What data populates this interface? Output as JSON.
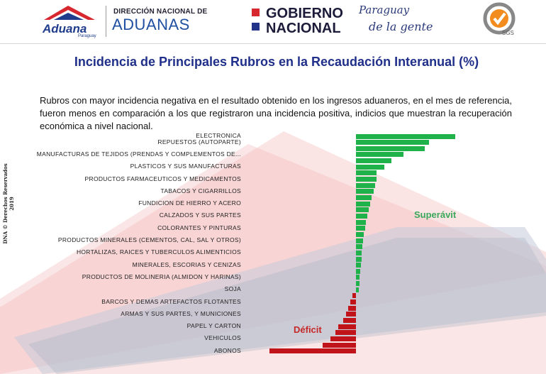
{
  "header": {
    "aduana_logo_word": "Aduana",
    "aduana_logo_sub": "Paraguay",
    "dna_small": "DIRECCIÓN NACIONAL DE",
    "dna_big": "ADUANAS",
    "gov_line1": "GOBIERNO",
    "gov_line2": "NACIONAL",
    "slogan_line1": "Paraguay",
    "slogan_line2": "de la gente",
    "sgs_label": "SGS"
  },
  "side_note": "DNA © Derechos Reservados 2019",
  "title": "Incidencia de Principales Rubros en la Recaudación Interanual (%)",
  "description": "Rubros con mayor incidencia negativa en el resultado obtenido en los ingresos aduaneros, en el mes de referencia, fueron menos en comparación a los que registraron una incidencia positiva, indicios que muestran la recuperación económica a nivel nacional.",
  "annotations": {
    "superavit": "Superávit",
    "deficit": "Déficit"
  },
  "colors": {
    "positive": "#1fb14a",
    "negative": "#c0131a",
    "title": "#1f2f8a"
  },
  "chart_data": {
    "type": "bar",
    "orientation": "horizontal",
    "title": "Incidencia de Principales Rubros en la Recaudación Interanual (%)",
    "categories": [
      "ELECTRONICA",
      "REPUESTOS (AUTOPARTE)",
      "",
      "MANUFACTURAS DE TEJIDOS (PRENDAS Y COMPLEMENTOS DE...",
      "",
      "PLASTICOS Y SUS MANUFACTURAS",
      "",
      "PRODUCTOS FARMACEUTICOS Y MEDICAMENTOS",
      "",
      "TABACOS Y CIGARRILLOS",
      "",
      "FUNDICION DE HIERRO Y ACERO",
      "",
      "CALZADOS Y SUS PARTES",
      "",
      "COLORANTES Y PINTURAS",
      "",
      "PRODUCTOS MINERALES (CEMENTOS, CAL, SAL Y OTROS)",
      "",
      "HORTALIZAS, RAICES Y TUBERCULOS ALIMENTICIOS",
      "",
      "MINERALES, ESCORIAS Y CENIZAS",
      "",
      "PRODUCTOS DE MOLINERIA (ALMIDON Y HARINAS)",
      "",
      "SOJA",
      "",
      "BARCOS Y DEMAS ARTEFACTOS FLOTANTES",
      "",
      "ARMAS Y SUS PARTES, Y MUNICIONES",
      "",
      "PAPEL Y CARTON",
      "",
      "VEHICULOS",
      "",
      "ABONOS"
    ],
    "values": [
      7.8,
      5.7,
      5.4,
      3.7,
      2.8,
      2.2,
      1.6,
      1.6,
      1.5,
      1.4,
      1.2,
      1.1,
      1.0,
      0.9,
      0.8,
      0.7,
      0.6,
      0.55,
      0.5,
      0.45,
      0.45,
      0.4,
      0.35,
      0.3,
      0.25,
      0.2,
      -0.3,
      -0.45,
      -0.6,
      -0.8,
      -1.0,
      -1.4,
      -1.6,
      -2.0,
      -2.6,
      -6.8
    ],
    "xlabel": "",
    "ylabel": "",
    "grid": false,
    "legend": "none"
  }
}
